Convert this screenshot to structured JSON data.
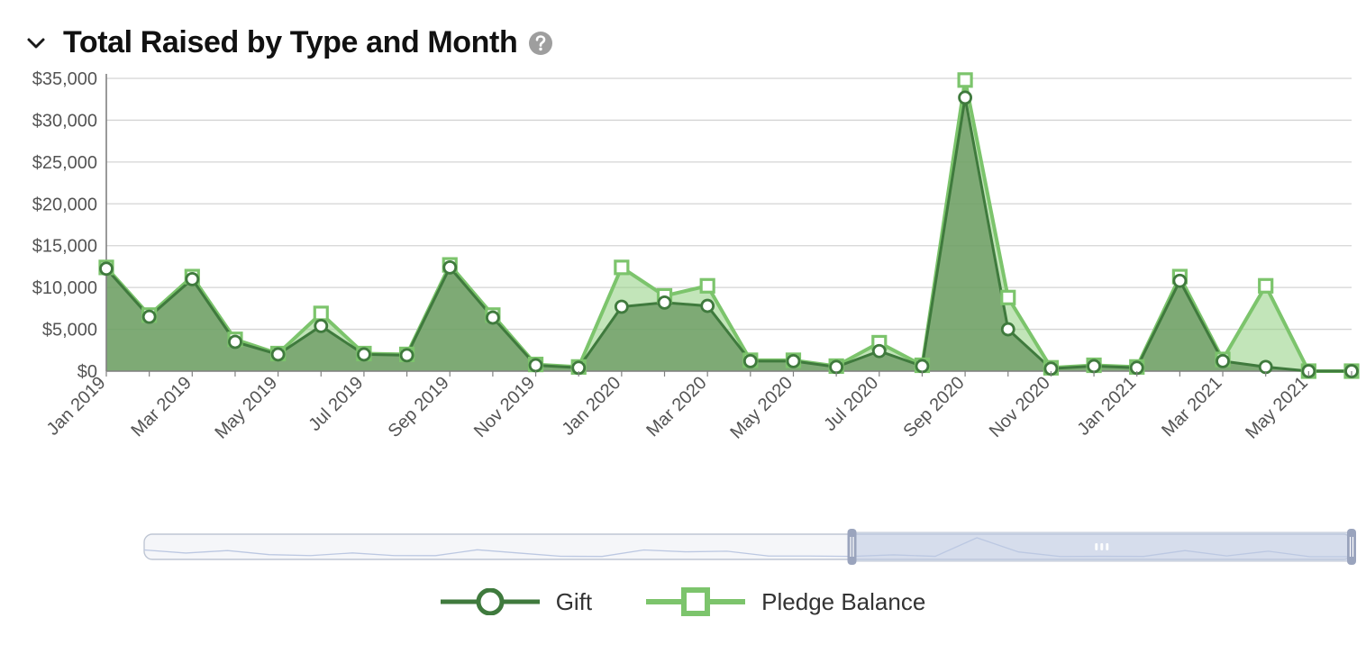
{
  "header": {
    "title": "Total Raised by Type and Month"
  },
  "chart": {
    "type": "area-line",
    "background_color": "#ffffff",
    "grid_color": "#d4d4d4",
    "axis_color": "#808080",
    "tick_label_color": "#545454",
    "tick_fontsize": 20,
    "ylim": [
      0,
      35000
    ],
    "ytick_step": 5000,
    "y_tick_labels": [
      "$0",
      "$5,000",
      "$10,000",
      "$15,000",
      "$20,000",
      "$25,000",
      "$30,000",
      "$35,000"
    ],
    "months": [
      "Jan 2019",
      "Feb 2019",
      "Mar 2019",
      "Apr 2019",
      "May 2019",
      "Jun 2019",
      "Jul 2019",
      "Aug 2019",
      "Sep 2019",
      "Oct 2019",
      "Nov 2019",
      "Dec 2019",
      "Jan 2020",
      "Feb 2020",
      "Mar 2020",
      "Apr 2020",
      "May 2020",
      "Jun 2020",
      "Jul 2020",
      "Aug 2020",
      "Sep 2020",
      "Oct 2020",
      "Nov 2020",
      "Dec 2020",
      "Jan 2021",
      "Feb 2021",
      "Mar 2021",
      "Apr 2021",
      "May 2021",
      "Jun 2021"
    ],
    "x_visible_labels": [
      "Jan 2019",
      "Mar 2019",
      "May 2019",
      "Jul 2019",
      "Sep 2019",
      "Nov 2019",
      "Jan 2020",
      "Mar 2020",
      "May 2020",
      "Jul 2020",
      "Sep 2020",
      "Nov 2020",
      "Jan 2021",
      "Mar 2021",
      "May 2021"
    ],
    "series": [
      {
        "name": "Gift",
        "marker": "circle",
        "marker_size": 13,
        "marker_fill": "#ffffff",
        "line_color": "#3f7a3d",
        "line_width": 3,
        "area_fill": "#6a9a62",
        "area_opacity": 0.78,
        "values": [
          12250,
          6500,
          11000,
          3500,
          2000,
          5400,
          2000,
          1900,
          12400,
          6400,
          700,
          400,
          7700,
          8200,
          7800,
          1200,
          1200,
          500,
          2400,
          600,
          32700,
          5000,
          300,
          600,
          400,
          10800,
          1200,
          500,
          0,
          0
        ]
      },
      {
        "name": "Pledge Balance",
        "marker": "square",
        "marker_size": 14,
        "marker_fill": "#ffffff",
        "line_color": "#7cc46c",
        "line_width": 4,
        "area_fill": "#8fcf7f",
        "area_opacity": 0.55,
        "values": [
          12400,
          6700,
          11300,
          3800,
          2100,
          6900,
          2100,
          2000,
          12700,
          6700,
          800,
          500,
          12400,
          9000,
          10200,
          1300,
          1300,
          600,
          3400,
          700,
          34800,
          8800,
          400,
          700,
          500,
          11300,
          1400,
          10200,
          0,
          0
        ]
      }
    ],
    "scrollbar": {
      "track_fill": "#f5f6f9",
      "track_border": "#bfc6d4",
      "selection_from_idx": 17,
      "selection_to_idx": 29,
      "selection_fill": "#bcc8e2",
      "selection_opacity": 0.55,
      "handle_color": "#9aa4bd",
      "spark_color": "#bcc8e2"
    }
  },
  "legend": {
    "items": [
      {
        "label": "Gift"
      },
      {
        "label": "Pledge Balance"
      }
    ]
  }
}
